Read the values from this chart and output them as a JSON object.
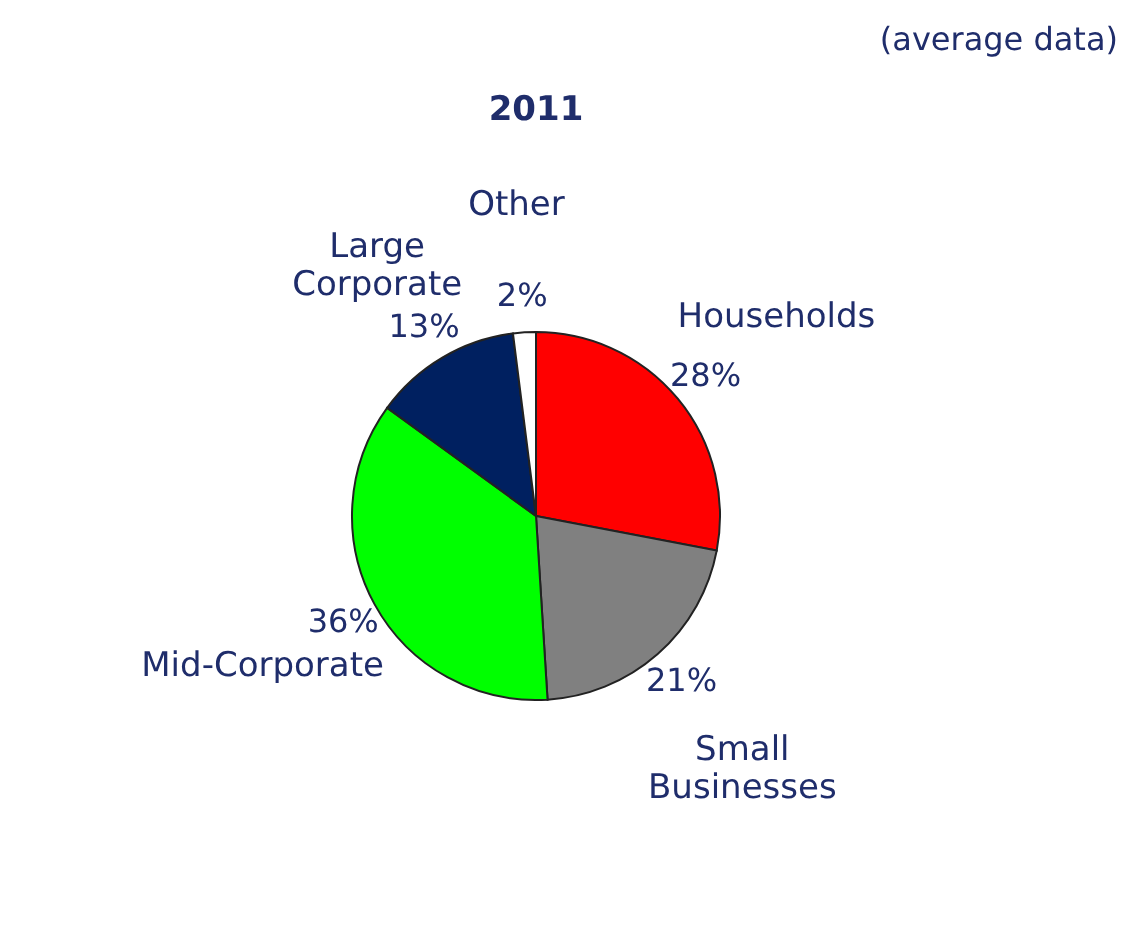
{
  "chart_data": {
    "type": "pie",
    "title": "2011",
    "annotations": [
      "(average data)"
    ],
    "categories": [
      "Households",
      "Small Businesses",
      "Mid-Corporate",
      "Large Corporate",
      "Other"
    ],
    "values": [
      28,
      21,
      36,
      13,
      2
    ],
    "value_labels": [
      "28%",
      "21%",
      "36%",
      "13%",
      "2%"
    ],
    "colors": [
      "#ff0000",
      "#808080",
      "#00ff00",
      "#002060",
      "#ffffff"
    ]
  }
}
